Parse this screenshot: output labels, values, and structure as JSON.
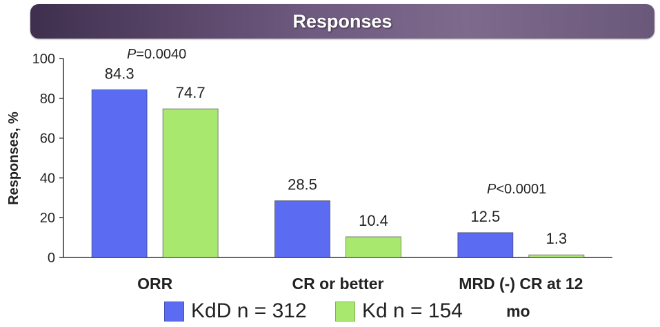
{
  "header": {
    "title": "Responses"
  },
  "chart_data": {
    "type": "bar",
    "ylabel": "Responses, %",
    "ylim": [
      0,
      100
    ],
    "yticks": [
      "0",
      "20",
      "40",
      "60",
      "80",
      "100"
    ],
    "categories": [
      "ORR",
      "CR or better",
      "MRD (-) CR at 12 mo"
    ],
    "category_label_lines": [
      [
        "ORR"
      ],
      [
        "CR or better"
      ],
      [
        "MRD (-) CR at 12",
        "mo"
      ]
    ],
    "series": [
      {
        "name": "KdD n = 312",
        "color": "#5b6cf2",
        "values": [
          84.3,
          28.5,
          12.5
        ],
        "labels": [
          "84.3",
          "28.5",
          "12.5"
        ]
      },
      {
        "name": "Kd n = 154",
        "color": "#a9e86e",
        "values": [
          74.7,
          10.4,
          1.3
        ],
        "labels": [
          "74.7",
          "10.4",
          "1.3"
        ]
      }
    ],
    "annotations": [
      {
        "category": "ORR",
        "prefix": "P",
        "text": "=0.0040"
      },
      {
        "category": "MRD (-) CR at 12 mo",
        "prefix": "P",
        "text": "<0.0001"
      }
    ],
    "grid": false,
    "legend_position": "bottom"
  }
}
